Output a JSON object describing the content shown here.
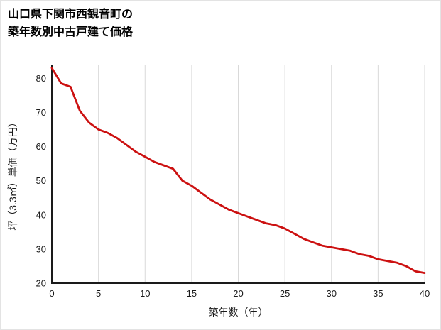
{
  "page": {
    "background": "#ffffff",
    "border_color": "#e3e3e3"
  },
  "title": {
    "line1": "山口県下関市西観音町の",
    "line2": "築年数別中古戸建て価格"
  },
  "chart_data": {
    "type": "line",
    "title": "山口県下関市西観音町の築年数別中古戸建て価格",
    "xlabel": "築年数（年）",
    "ylabel": "坪（3.3㎡）単価（万円）",
    "xlim": [
      0,
      40
    ],
    "ylim": [
      20,
      84
    ],
    "xticks": [
      0,
      5,
      10,
      15,
      20,
      25,
      30,
      35,
      40
    ],
    "yticks": [
      20,
      30,
      40,
      50,
      60,
      70,
      80
    ],
    "grid": "vertical-only",
    "legend": "none",
    "line_color": "#cc1111",
    "axis_color": "#1a1a1a",
    "grid_color": "#d9d9d9",
    "series": [
      {
        "name": "坪単価",
        "x": [
          0,
          1,
          2,
          3,
          4,
          5,
          6,
          7,
          8,
          9,
          10,
          11,
          12,
          13,
          14,
          15,
          16,
          17,
          18,
          19,
          20,
          21,
          22,
          23,
          24,
          25,
          26,
          27,
          28,
          29,
          30,
          31,
          32,
          33,
          34,
          35,
          36,
          37,
          38,
          39,
          40
        ],
        "y": [
          83,
          78.5,
          77.5,
          70.5,
          67,
          65,
          64,
          62.5,
          60.5,
          58.5,
          57,
          55.5,
          54.5,
          53.5,
          50,
          48.5,
          46.5,
          44.5,
          43,
          41.5,
          40.5,
          39.5,
          38.5,
          37.5,
          37,
          36,
          34.5,
          33,
          32,
          31,
          30.5,
          30,
          29.5,
          28.5,
          28,
          27,
          26.5,
          26,
          25,
          23.5,
          23
        ]
      }
    ]
  }
}
